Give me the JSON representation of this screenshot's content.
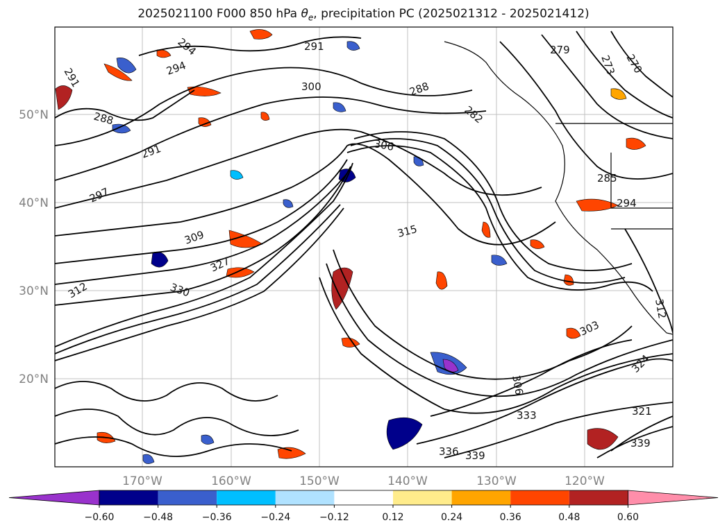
{
  "title_main": "2025021100 F000 850 hPa ",
  "title_theta": "θ",
  "title_theta_sub": "e",
  "title_rest": ", precipitation PC (2025021312 - 2025021412)",
  "lat_labels": [
    "50°N",
    "40°N",
    "30°N",
    "20°N"
  ],
  "lon_labels": [
    "170°W",
    "160°W",
    "150°W",
    "140°W",
    "130°W",
    "120°W"
  ],
  "contour_labels": [
    "294",
    "291",
    "279",
    "273",
    "270",
    "291",
    "294",
    "288",
    "300",
    "282",
    "288",
    "291",
    "306",
    "297",
    "285",
    "294",
    "309",
    "315",
    "327",
    "330",
    "312",
    "303",
    "312",
    "306",
    "324",
    "333",
    "321",
    "339",
    "336",
    "339"
  ],
  "colorbar": {
    "tick_labels": [
      "−0.60",
      "−0.48",
      "−0.36",
      "−0.24",
      "−0.12",
      "0.12",
      "0.24",
      "0.36",
      "0.48",
      "0.60"
    ],
    "colors": [
      "#9932cc",
      "#00008b",
      "#3a5fcd",
      "#00bfff",
      "#b0e2ff",
      "#ffffff",
      "#ffec8b",
      "#ffa500",
      "#ff4500",
      "#b22222",
      "#ff8eaa"
    ]
  }
}
